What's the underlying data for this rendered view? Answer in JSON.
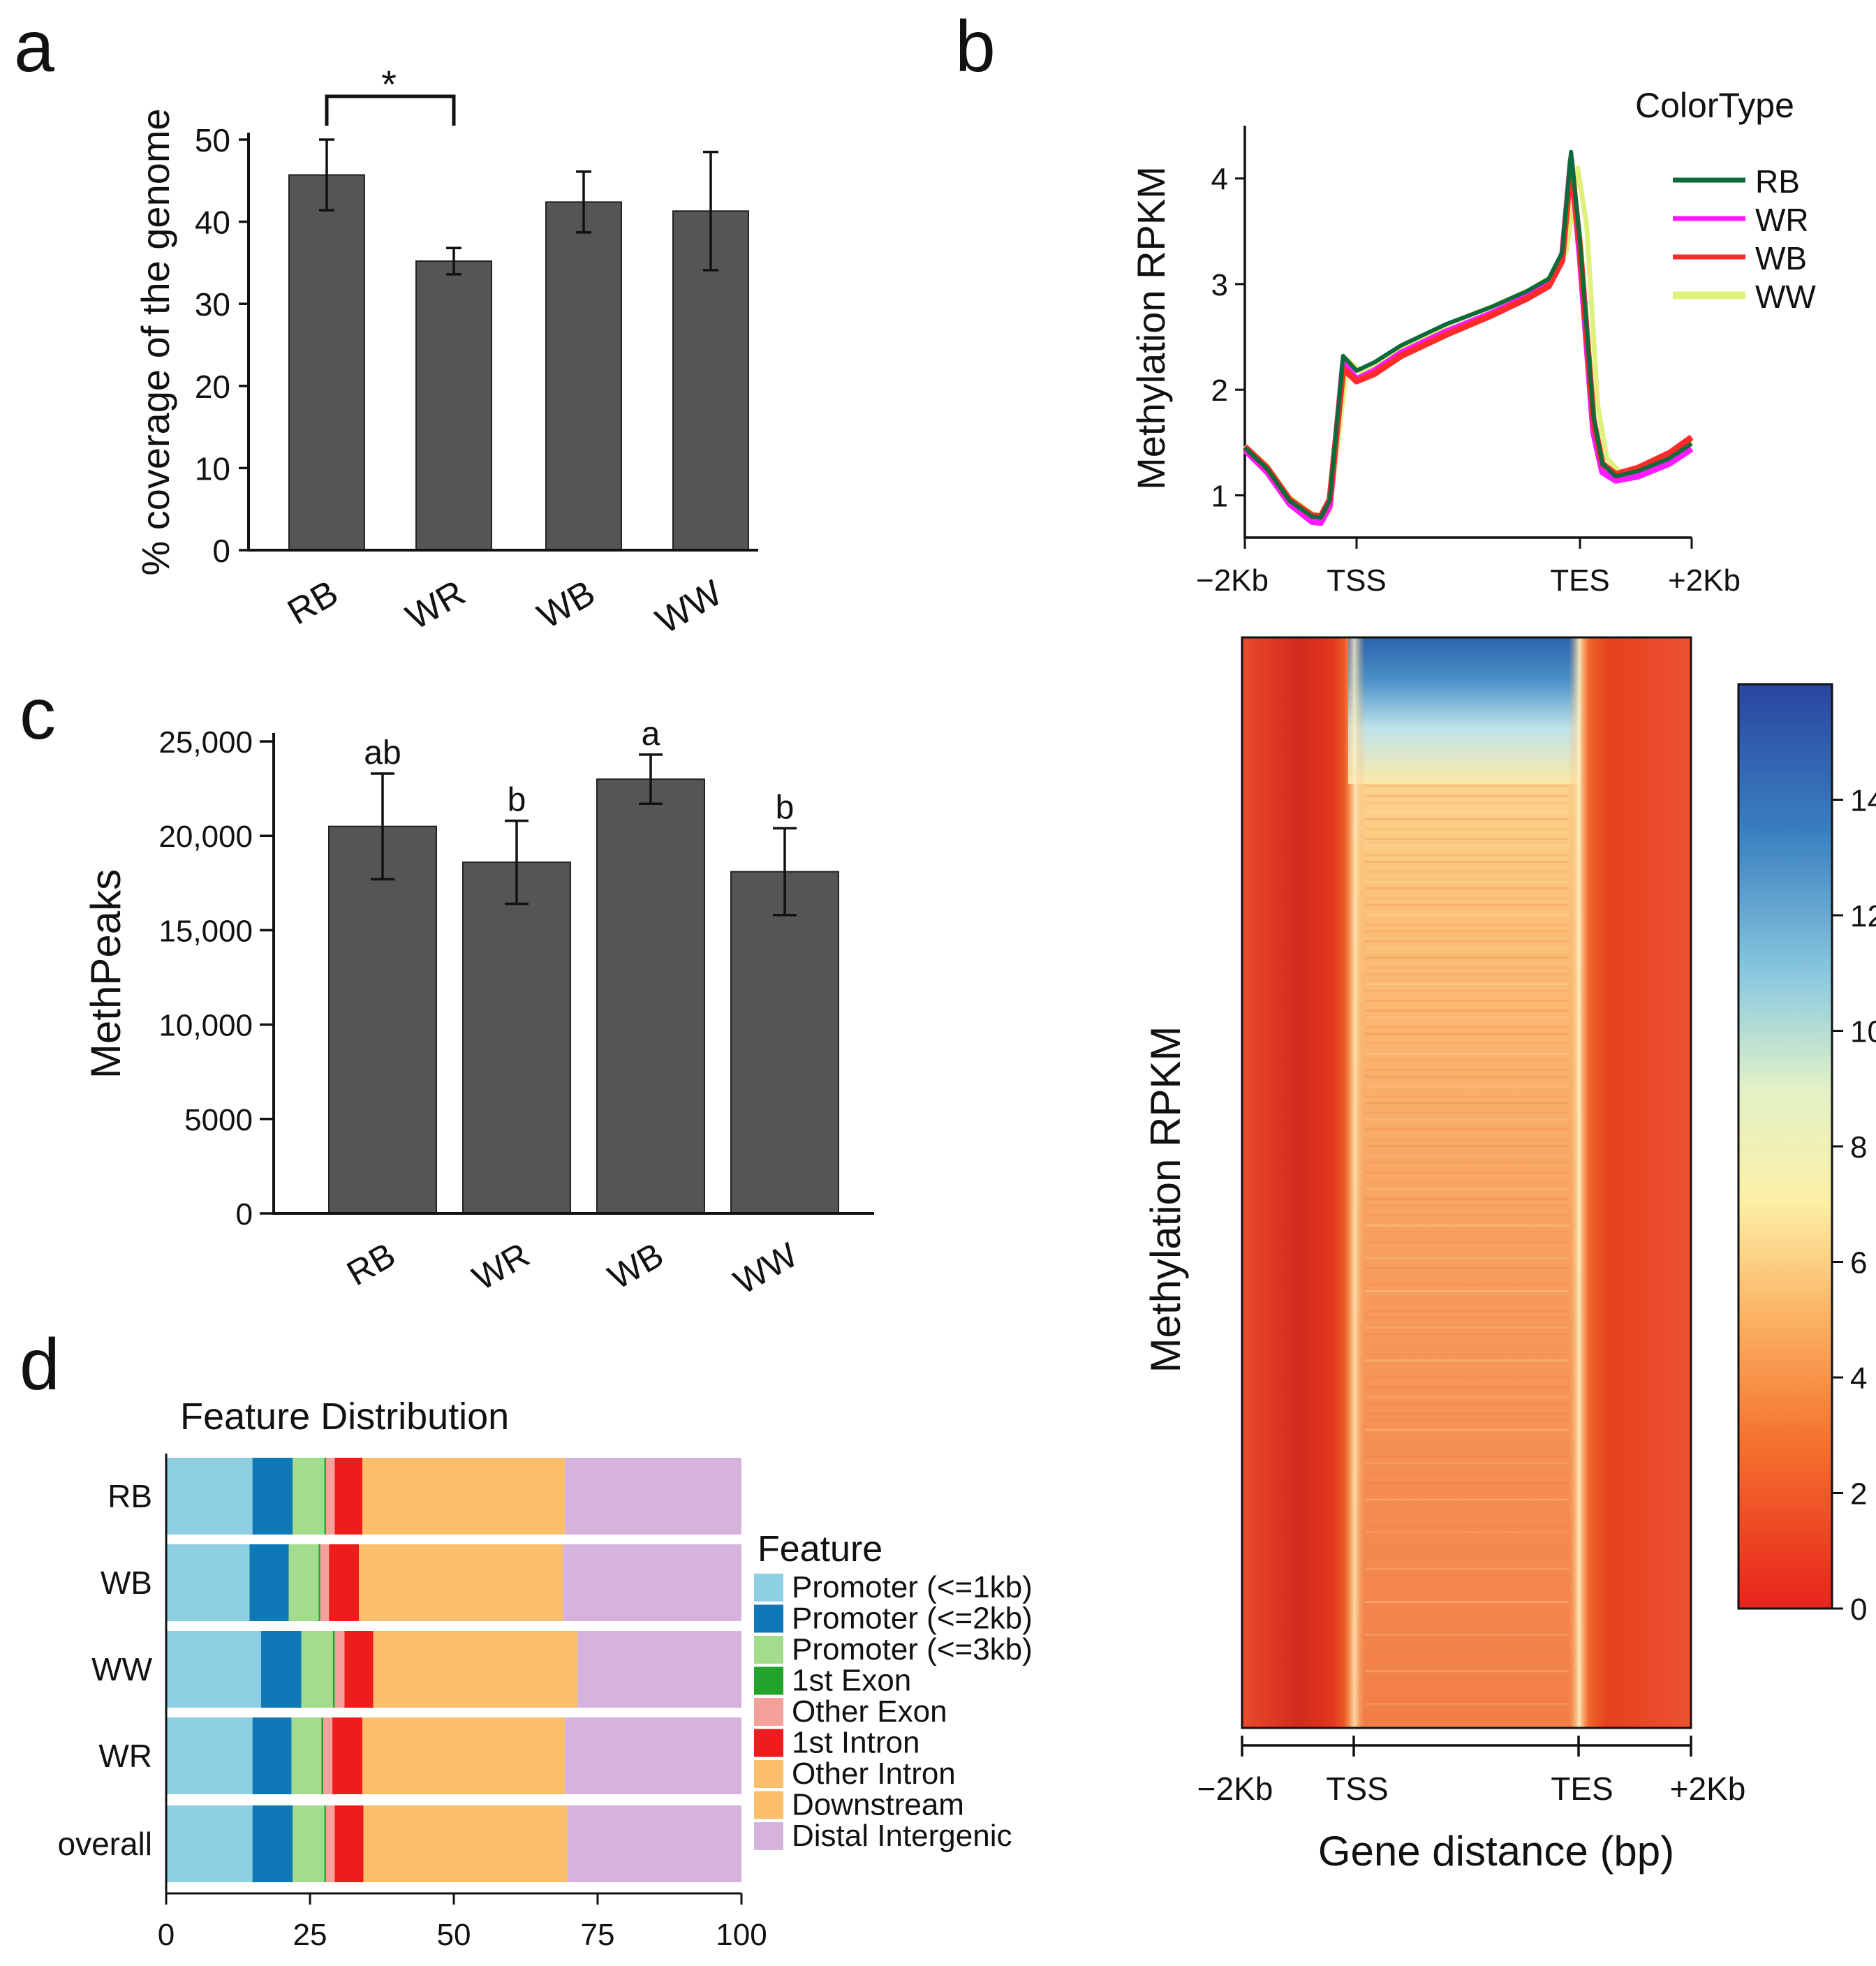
{
  "panels": {
    "a": {
      "letter": "a"
    },
    "b": {
      "letter": "b"
    },
    "c": {
      "letter": "c"
    },
    "d": {
      "letter": "d"
    }
  },
  "colors": {
    "bar": "#555555",
    "axis": "#111111",
    "RB": "#0d6b3b",
    "WR": "#ff1aff",
    "WB": "#ff2a2a",
    "WW": "#e0f07a"
  },
  "chart_data": [
    {
      "id": "a",
      "type": "bar",
      "categories": [
        "RB",
        "WR",
        "WB",
        "WW"
      ],
      "values": [
        45.7,
        35.2,
        42.4,
        41.3
      ],
      "errors": [
        4.3,
        1.6,
        3.7,
        7.2
      ],
      "ylim": [
        0,
        50
      ],
      "yticks": [
        "0",
        "10",
        "20",
        "30",
        "40",
        "50"
      ],
      "ylabel": "% coverage of the genome",
      "significance": {
        "between": [
          "RB",
          "WR"
        ],
        "label": "*"
      }
    },
    {
      "id": "b-profile",
      "type": "line",
      "ylabel": "Methylation RPKM",
      "ylim": [
        0.6,
        4.5
      ],
      "yticks": [
        "1",
        "2",
        "3",
        "4"
      ],
      "xticklabels": [
        "−2Kb",
        "TSS",
        "TES",
        "+2Kb"
      ],
      "legend_title": "ColorType",
      "series": [
        {
          "name": "RB",
          "points": [
            [
              0,
              1.45
            ],
            [
              0.05,
              1.25
            ],
            [
              0.1,
              0.95
            ],
            [
              0.15,
              0.8
            ],
            [
              0.17,
              0.79
            ],
            [
              0.19,
              0.95
            ],
            [
              0.22,
              2.32
            ],
            [
              0.25,
              2.18
            ],
            [
              0.29,
              2.26
            ],
            [
              0.35,
              2.42
            ],
            [
              0.45,
              2.62
            ],
            [
              0.55,
              2.78
            ],
            [
              0.63,
              2.93
            ],
            [
              0.68,
              3.05
            ],
            [
              0.71,
              3.3
            ],
            [
              0.73,
              4.25
            ],
            [
              0.75,
              3.4
            ],
            [
              0.78,
              1.75
            ],
            [
              0.8,
              1.3
            ],
            [
              0.83,
              1.18
            ],
            [
              0.88,
              1.23
            ],
            [
              0.95,
              1.35
            ],
            [
              1.0,
              1.49
            ]
          ]
        },
        {
          "name": "WR",
          "points": [
            [
              0,
              1.43
            ],
            [
              0.05,
              1.22
            ],
            [
              0.1,
              0.92
            ],
            [
              0.15,
              0.75
            ],
            [
              0.17,
              0.74
            ],
            [
              0.19,
              0.9
            ],
            [
              0.22,
              2.25
            ],
            [
              0.25,
              2.1
            ],
            [
              0.29,
              2.18
            ],
            [
              0.35,
              2.35
            ],
            [
              0.45,
              2.55
            ],
            [
              0.55,
              2.72
            ],
            [
              0.63,
              2.88
            ],
            [
              0.68,
              3.0
            ],
            [
              0.71,
              3.25
            ],
            [
              0.73,
              4.18
            ],
            [
              0.75,
              3.25
            ],
            [
              0.78,
              1.6
            ],
            [
              0.8,
              1.22
            ],
            [
              0.83,
              1.14
            ],
            [
              0.88,
              1.18
            ],
            [
              0.95,
              1.3
            ],
            [
              1.0,
              1.44
            ]
          ]
        },
        {
          "name": "WB",
          "points": [
            [
              0,
              1.46
            ],
            [
              0.05,
              1.26
            ],
            [
              0.1,
              0.96
            ],
            [
              0.15,
              0.81
            ],
            [
              0.17,
              0.8
            ],
            [
              0.19,
              0.96
            ],
            [
              0.22,
              2.2
            ],
            [
              0.25,
              2.08
            ],
            [
              0.29,
              2.15
            ],
            [
              0.35,
              2.32
            ],
            [
              0.45,
              2.52
            ],
            [
              0.55,
              2.7
            ],
            [
              0.63,
              2.86
            ],
            [
              0.68,
              2.98
            ],
            [
              0.71,
              3.22
            ],
            [
              0.73,
              4.15
            ],
            [
              0.75,
              3.35
            ],
            [
              0.78,
              1.72
            ],
            [
              0.8,
              1.3
            ],
            [
              0.83,
              1.2
            ],
            [
              0.88,
              1.26
            ],
            [
              0.95,
              1.4
            ],
            [
              1.0,
              1.55
            ]
          ]
        },
        {
          "name": "WW",
          "points": [
            [
              0,
              1.47
            ],
            [
              0.05,
              1.28
            ],
            [
              0.1,
              0.98
            ],
            [
              0.15,
              0.83
            ],
            [
              0.17,
              0.8
            ],
            [
              0.19,
              0.85
            ],
            [
              0.23,
              2.28
            ],
            [
              0.26,
              2.17
            ],
            [
              0.3,
              2.25
            ],
            [
              0.36,
              2.42
            ],
            [
              0.46,
              2.63
            ],
            [
              0.56,
              2.8
            ],
            [
              0.64,
              2.95
            ],
            [
              0.69,
              3.08
            ],
            [
              0.72,
              3.32
            ],
            [
              0.745,
              4.1
            ],
            [
              0.765,
              3.55
            ],
            [
              0.79,
              1.85
            ],
            [
              0.81,
              1.35
            ],
            [
              0.84,
              1.22
            ],
            [
              0.89,
              1.27
            ],
            [
              0.95,
              1.38
            ],
            [
              1.0,
              1.52
            ]
          ]
        }
      ]
    },
    {
      "id": "b-heatmap",
      "type": "heatmap",
      "ylabel": "Methylation RPKM",
      "xlabel": "Gene distance (bp)",
      "xticklabels": [
        "−2Kb",
        "TSS",
        "TES",
        "+2Kb"
      ],
      "colorbar": {
        "range": [
          0,
          16
        ],
        "ticks": [
          "0",
          "2",
          "4",
          "6",
          "8",
          "10",
          "12",
          "14"
        ]
      }
    },
    {
      "id": "c",
      "type": "bar",
      "categories": [
        "RB",
        "WR",
        "WB",
        "WW"
      ],
      "values": [
        20500,
        18600,
        23000,
        18100
      ],
      "errors": [
        2800,
        2200,
        1300,
        2300
      ],
      "letters": [
        "ab",
        "b",
        "a",
        "b"
      ],
      "ylim": [
        0,
        25000
      ],
      "yticks": [
        "0",
        "5000",
        "10,000",
        "15,000",
        "20,000",
        "25,000"
      ],
      "ylabel": "MethPeaks"
    },
    {
      "id": "d",
      "type": "bar",
      "orientation": "horizontal-stacked",
      "title": "Feature Distribution",
      "categories": [
        "RB",
        "WB",
        "WW",
        "WR",
        "overall"
      ],
      "xlim": [
        0,
        100
      ],
      "xticks": [
        "0",
        "25",
        "50",
        "75",
        "100"
      ],
      "legend_title": "Feature",
      "series": [
        {
          "name": "Promoter (<=1kb)",
          "color": "#8ecfe3",
          "values": [
            15.0,
            14.5,
            16.5,
            15.0,
            15.0
          ]
        },
        {
          "name": "Promoter (<=2kb)",
          "color": "#0f78b6",
          "values": [
            7.0,
            6.8,
            7.0,
            6.8,
            7.0
          ]
        },
        {
          "name": "Promoter (<=3kb)",
          "color": "#a2dc8c",
          "values": [
            5.5,
            5.2,
            5.5,
            5.2,
            5.5
          ]
        },
        {
          "name": "1st Exon",
          "color": "#23a22c",
          "values": [
            0.3,
            0.3,
            0.3,
            0.3,
            0.3
          ]
        },
        {
          "name": "Other Exon",
          "color": "#f5a19b",
          "values": [
            1.5,
            1.5,
            1.7,
            1.6,
            1.5
          ]
        },
        {
          "name": "1st Intron",
          "color": "#ee1c1c",
          "values": [
            4.8,
            5.2,
            5.0,
            5.2,
            5.0
          ]
        },
        {
          "name": "Other Intron",
          "color": "#fbbf6c",
          "values": [
            35.2,
            35.5,
            35.5,
            35.2,
            35.5
          ]
        },
        {
          "name": "Downstream",
          "color": "#fbbf6c",
          "values": [
            0.0,
            0.0,
            0.0,
            0.0,
            0.0
          ]
        },
        {
          "name": "Distal Intergenic",
          "color": "#d6b3dc",
          "values": [
            30.7,
            31.0,
            28.5,
            30.7,
            30.2
          ]
        }
      ]
    }
  ]
}
